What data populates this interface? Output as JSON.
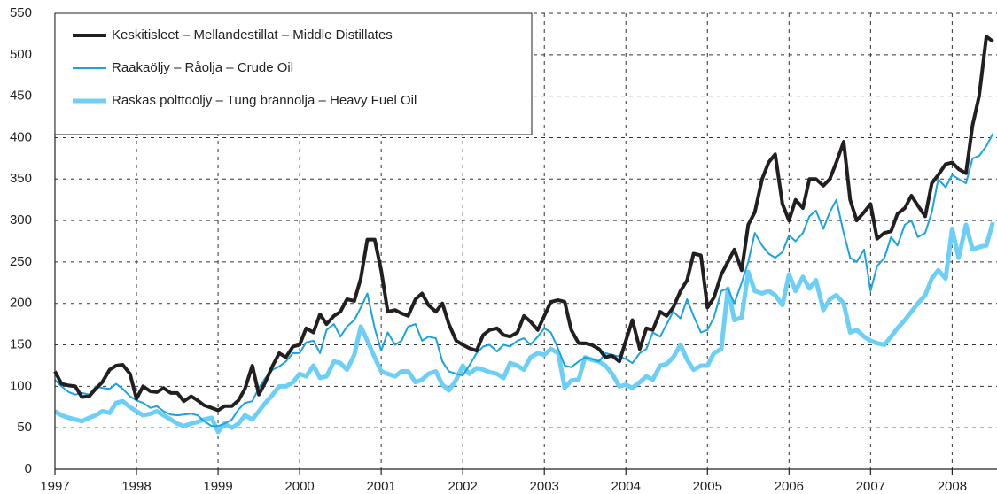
{
  "chart_data": {
    "type": "line",
    "x": [
      1997,
      1997.08,
      1997.17,
      1997.25,
      1997.33,
      1997.42,
      1997.5,
      1997.58,
      1997.67,
      1997.75,
      1997.83,
      1997.92,
      1998,
      1998.08,
      1998.17,
      1998.25,
      1998.33,
      1998.42,
      1998.5,
      1998.58,
      1998.67,
      1998.75,
      1998.83,
      1998.92,
      1999,
      1999.08,
      1999.17,
      1999.25,
      1999.33,
      1999.42,
      1999.5,
      1999.58,
      1999.67,
      1999.75,
      1999.83,
      1999.92,
      2000,
      2000.08,
      2000.17,
      2000.25,
      2000.33,
      2000.42,
      2000.5,
      2000.58,
      2000.67,
      2000.75,
      2000.83,
      2000.92,
      2001,
      2001.08,
      2001.17,
      2001.25,
      2001.33,
      2001.42,
      2001.5,
      2001.58,
      2001.67,
      2001.75,
      2001.83,
      2001.92,
      2002,
      2002.08,
      2002.17,
      2002.25,
      2002.33,
      2002.42,
      2002.5,
      2002.58,
      2002.67,
      2002.75,
      2002.83,
      2002.92,
      2003,
      2003.08,
      2003.17,
      2003.25,
      2003.33,
      2003.42,
      2003.5,
      2003.58,
      2003.67,
      2003.75,
      2003.83,
      2003.92,
      2004,
      2004.08,
      2004.17,
      2004.25,
      2004.33,
      2004.42,
      2004.5,
      2004.58,
      2004.67,
      2004.75,
      2004.83,
      2004.92,
      2005,
      2005.08,
      2005.17,
      2005.25,
      2005.33,
      2005.42,
      2005.5,
      2005.58,
      2005.67,
      2005.75,
      2005.83,
      2005.92,
      2006,
      2006.08,
      2006.17,
      2006.25,
      2006.33,
      2006.42,
      2006.5,
      2006.58,
      2006.67,
      2006.75,
      2006.83,
      2006.92,
      2007,
      2007.08,
      2007.17,
      2007.25,
      2007.33,
      2007.42,
      2007.5,
      2007.58,
      2007.67,
      2007.75,
      2007.83,
      2007.92,
      2008,
      2008.08,
      2008.17,
      2008.25,
      2008.33,
      2008.42,
      2008.5
    ],
    "series": [
      {
        "name": "Keskitisleet – Mellandestillat – Middle Distillates",
        "color": "#231f20",
        "width": 4,
        "values": [
          118,
          103,
          101,
          100,
          87,
          88,
          97,
          105,
          120,
          125,
          126,
          115,
          85,
          100,
          94,
          93,
          98,
          92,
          92,
          82,
          88,
          83,
          77,
          74,
          71,
          76,
          76,
          83,
          97,
          125,
          90,
          105,
          125,
          140,
          135,
          148,
          150,
          170,
          165,
          187,
          175,
          185,
          190,
          205,
          203,
          230,
          277,
          277,
          240,
          190,
          192,
          188,
          185,
          205,
          212,
          198,
          190,
          200,
          175,
          155,
          150,
          146,
          143,
          162,
          168,
          170,
          162,
          160,
          165,
          185,
          178,
          168,
          185,
          202,
          204,
          202,
          168,
          152,
          152,
          150,
          145,
          135,
          137,
          130,
          155,
          180,
          145,
          170,
          168,
          190,
          185,
          195,
          215,
          228,
          260,
          258,
          195,
          207,
          235,
          250,
          265,
          240,
          295,
          310,
          350,
          370,
          380,
          320,
          300,
          325,
          315,
          350,
          350,
          342,
          350,
          370,
          395,
          325,
          300,
          310,
          320,
          278,
          285,
          287,
          308,
          315,
          330,
          318,
          305,
          345,
          355,
          368,
          370,
          362,
          357,
          415,
          450,
          522,
          516
        ]
      },
      {
        "name": "Raakaöljy – Råolja – Crude Oil",
        "color": "#1aa3df",
        "width": 2,
        "values": [
          108,
          100,
          93,
          90,
          92,
          90,
          100,
          98,
          97,
          103,
          97,
          88,
          83,
          80,
          74,
          76,
          70,
          66,
          65,
          66,
          67,
          65,
          58,
          52,
          52,
          55,
          60,
          72,
          80,
          82,
          98,
          110,
          120,
          124,
          130,
          140,
          140,
          153,
          155,
          140,
          168,
          175,
          160,
          172,
          180,
          195,
          212,
          170,
          143,
          165,
          150,
          155,
          172,
          175,
          155,
          160,
          158,
          130,
          118,
          115,
          113,
          125,
          140,
          148,
          150,
          142,
          150,
          148,
          155,
          158,
          150,
          160,
          170,
          165,
          145,
          125,
          123,
          130,
          135,
          133,
          130,
          140,
          138,
          136,
          133,
          128,
          140,
          145,
          165,
          160,
          175,
          190,
          182,
          205,
          185,
          165,
          168,
          183,
          215,
          218,
          200,
          225,
          250,
          285,
          270,
          260,
          255,
          262,
          282,
          275,
          285,
          305,
          312,
          290,
          310,
          325,
          285,
          255,
          250,
          265,
          215,
          245,
          255,
          280,
          270,
          295,
          300,
          280,
          285,
          310,
          350,
          340,
          355,
          350,
          345,
          375,
          378,
          390,
          405
        ]
      },
      {
        "name": "Raskas polttoöljy – Tung brännolja – Heavy Fuel Oil",
        "color": "#6dcff6",
        "width": 5,
        "values": [
          70,
          65,
          62,
          60,
          58,
          62,
          65,
          70,
          68,
          80,
          82,
          75,
          70,
          65,
          67,
          70,
          65,
          60,
          55,
          52,
          55,
          57,
          60,
          62,
          45,
          55,
          50,
          55,
          65,
          60,
          70,
          80,
          90,
          100,
          100,
          105,
          115,
          112,
          125,
          110,
          112,
          130,
          128,
          120,
          138,
          172,
          155,
          135,
          118,
          115,
          112,
          118,
          118,
          105,
          108,
          115,
          118,
          102,
          95,
          108,
          125,
          115,
          122,
          120,
          117,
          115,
          110,
          128,
          125,
          120,
          135,
          140,
          138,
          145,
          140,
          98,
          107,
          108,
          135,
          132,
          130,
          125,
          115,
          100,
          102,
          98,
          105,
          112,
          108,
          125,
          127,
          135,
          150,
          132,
          120,
          125,
          125,
          140,
          145,
          218,
          180,
          183,
          238,
          215,
          212,
          215,
          210,
          198,
          235,
          215,
          232,
          218,
          228,
          192,
          205,
          210,
          200,
          165,
          168,
          160,
          155,
          152,
          150,
          160,
          170,
          180,
          190,
          200,
          210,
          230,
          240,
          230,
          290,
          255,
          295,
          265,
          268,
          270,
          298
        ]
      }
    ],
    "xlim": [
      1997,
      2008.55
    ],
    "xticks": [
      1997,
      1998,
      1999,
      2000,
      2001,
      2002,
      2003,
      2004,
      2005,
      2006,
      2007,
      2008
    ],
    "ylim": [
      0,
      550
    ],
    "yticks": [
      0,
      50,
      100,
      150,
      200,
      250,
      300,
      350,
      400,
      450,
      500,
      550
    ],
    "grid": true,
    "legend": "upper left"
  }
}
